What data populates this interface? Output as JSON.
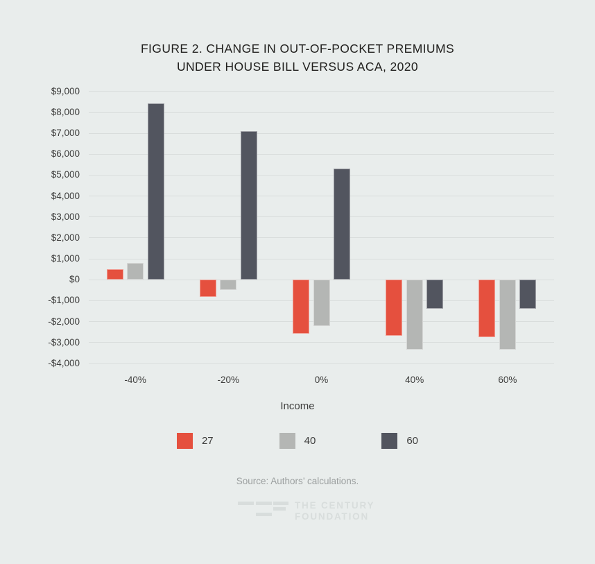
{
  "figure": {
    "title_line1": "FIGURE 2. CHANGE IN OUT-OF-POCKET PREMIUMS",
    "title_line2": "UNDER HOUSE BILL VERSUS ACA, 2020"
  },
  "chart_data": {
    "type": "bar",
    "title": "Figure 2. Change in Out-of-Pocket Premiums under House Bill versus ACA, 2020",
    "categories": [
      "-40%",
      "-20%",
      "0%",
      "40%",
      "60%"
    ],
    "series": [
      {
        "name": "27",
        "color": "#e5503e",
        "values": [
          500,
          -850,
          -2600,
          -2700,
          -2750
        ]
      },
      {
        "name": "40",
        "color": "#b4b6b4",
        "values": [
          800,
          -500,
          -2250,
          -3350,
          -3350
        ]
      },
      {
        "name": "60",
        "color": "#52555f",
        "values": [
          8400,
          7100,
          5300,
          -1400,
          -1400
        ]
      }
    ],
    "xlabel": "Income",
    "ylabel": "",
    "ylim": [
      -4000,
      9000
    ],
    "ytick_step": 1000,
    "ytick_format": "currency",
    "grid": true,
    "legend_position": "bottom-center"
  },
  "source_note": "Source: Authors’ calculations.",
  "logo": {
    "line1": "THE CENTURY",
    "line2": "FOUNDATION"
  },
  "colors": {
    "background": "#e9edec",
    "gridline": "#d9dddc",
    "title_text": "#201f1d",
    "axis_text": "#3d3d3c",
    "source_text": "#9b9f9f",
    "logo": "#d8dddc"
  }
}
